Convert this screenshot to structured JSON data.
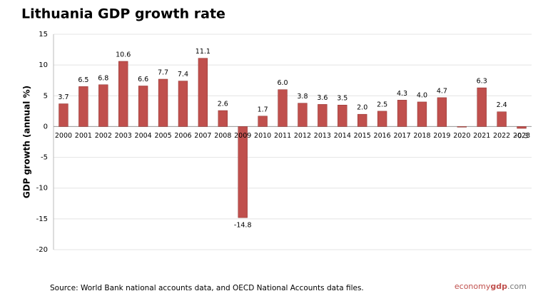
{
  "chart_data": {
    "type": "bar",
    "title": "Lithuania GDP growth rate",
    "y_label": "GDP growth (annual %)",
    "categories": [
      "2000",
      "2001",
      "2002",
      "2003",
      "2004",
      "2005",
      "2006",
      "2007",
      "2008",
      "2009",
      "2010",
      "2011",
      "2012",
      "2013",
      "2014",
      "2015",
      "2016",
      "2017",
      "2018",
      "2019",
      "2020",
      "2021",
      "2022",
      "2023"
    ],
    "values": [
      3.7,
      6.5,
      6.8,
      10.6,
      6.6,
      7.7,
      7.4,
      11.1,
      2.6,
      -14.8,
      1.7,
      6.0,
      3.8,
      3.6,
      3.5,
      2.0,
      2.5,
      4.3,
      4.0,
      4.7,
      -0.1,
      6.3,
      2.4,
      -0.3
    ],
    "value_labels": [
      "3.7",
      "6.5",
      "6.8",
      "10.6",
      "6.6",
      "7.7",
      "7.4",
      "11.1",
      "2.6",
      "-14.8",
      "1.7",
      "6.0",
      "3.8",
      "3.6",
      "3.5",
      "2.0",
      "2.5",
      "4.3",
      "4.0",
      "4.7",
      null,
      "6.3",
      "2.4",
      "-0.3"
    ],
    "color": "#c0504d",
    "ylim": [
      -20,
      15
    ],
    "yticks": [
      -20,
      -15,
      -10,
      -5,
      0,
      5,
      10,
      15
    ],
    "grid": true,
    "source": "Source:  World Bank national accounts data, and OECD National Accounts data files.",
    "watermark": [
      "economy",
      "gdp",
      ".com"
    ]
  }
}
